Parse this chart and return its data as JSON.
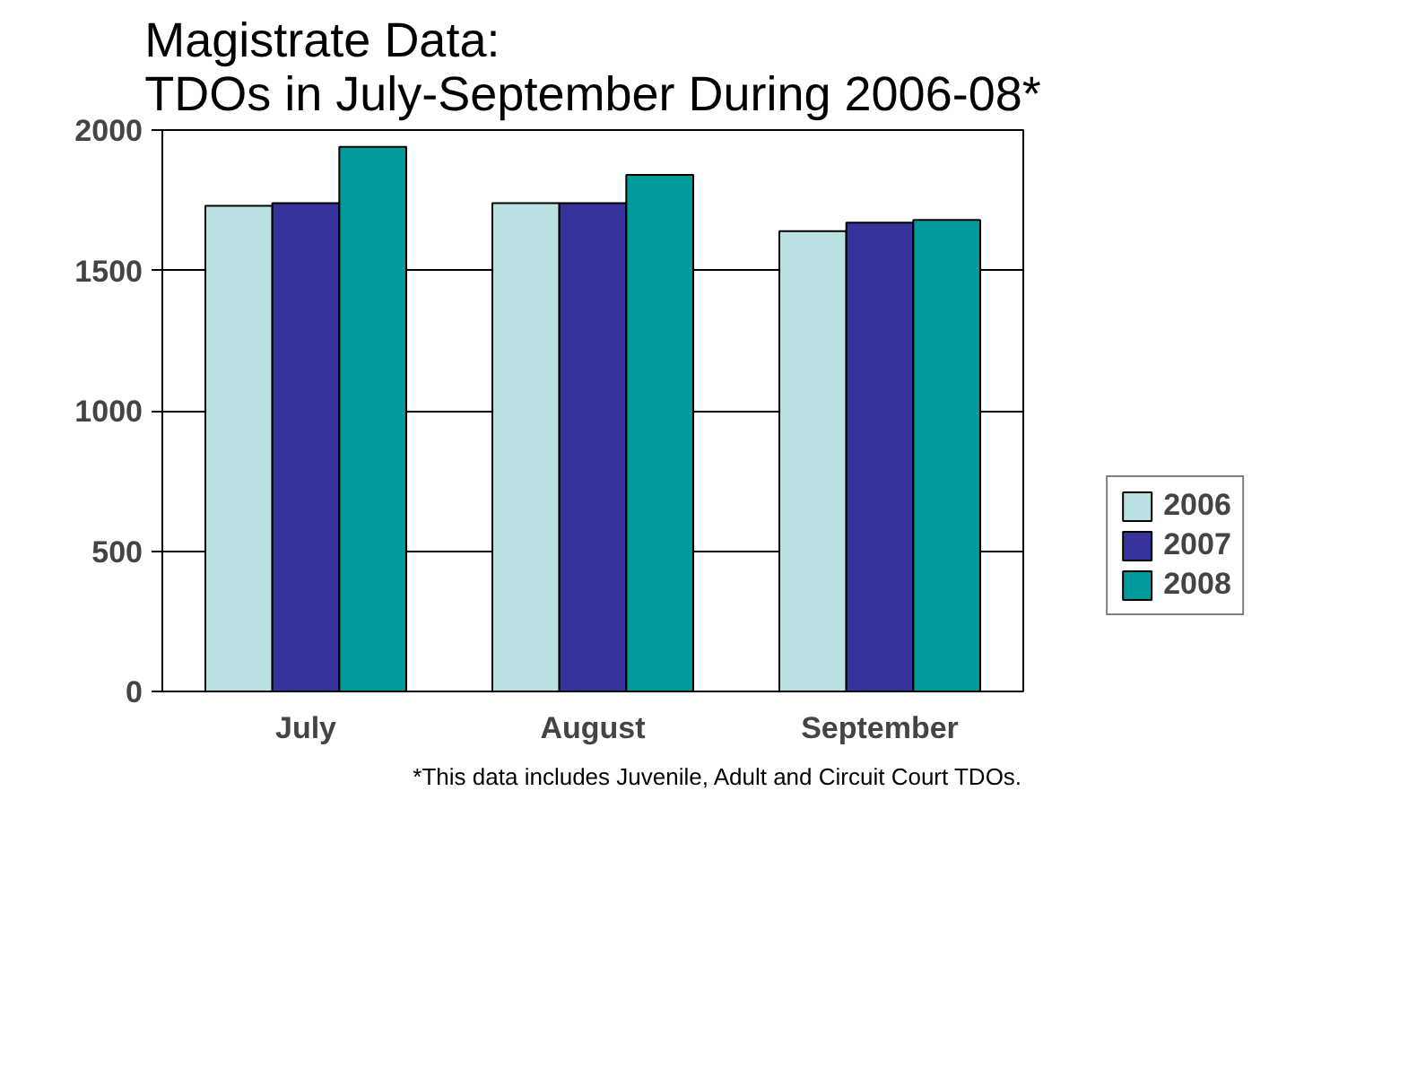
{
  "chart_data": {
    "type": "bar",
    "title": "Magistrate Data:\nTDOs in July-September During 2006-08*",
    "categories": [
      "July",
      "August",
      "September"
    ],
    "series": [
      {
        "name": "2006",
        "color": "#b9e0e3",
        "values": [
          1730,
          1740,
          1640
        ]
      },
      {
        "name": "2007",
        "color": "#36349a",
        "values": [
          1740,
          1740,
          1670
        ]
      },
      {
        "name": "2008",
        "color": "#009a9a",
        "values": [
          1940,
          1840,
          1680
        ]
      }
    ],
    "ylim": [
      0,
      2000
    ],
    "yticks": [
      0,
      500,
      1000,
      1500,
      2000
    ],
    "grid": "y",
    "legend": "right",
    "annotations": [
      "*This data includes Juvenile, Adult and Circuit Court TDOs."
    ]
  }
}
